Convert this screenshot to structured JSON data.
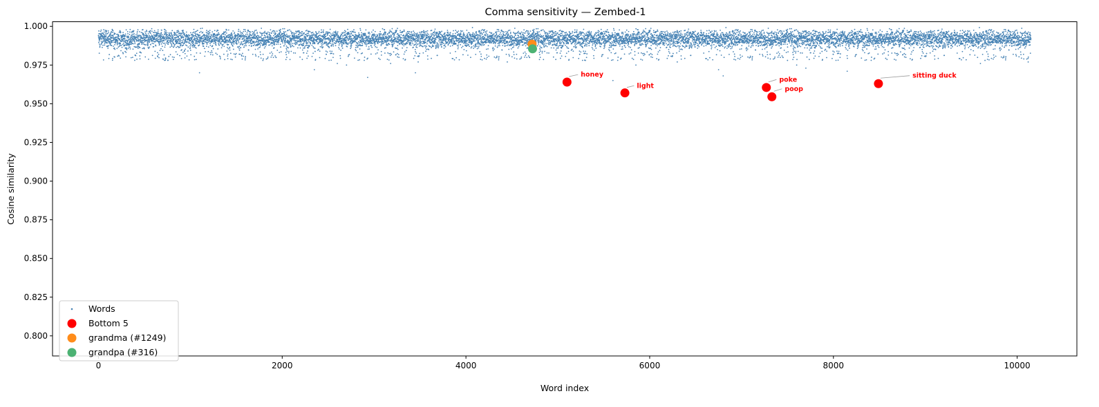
{
  "chart_data": {
    "type": "scatter",
    "title": "Comma sensitivity — Zembed-1",
    "xlabel": "Word index",
    "ylabel": "Cosine similarity",
    "xlim": [
      -500,
      10650
    ],
    "ylim": [
      0.787,
      1.003
    ],
    "xticks": [
      0,
      2000,
      4000,
      6000,
      8000,
      10000
    ],
    "yticks": [
      0.8,
      0.825,
      0.85,
      0.875,
      0.9,
      0.925,
      0.95,
      0.975,
      1.0
    ],
    "xtick_labels": [
      "0",
      "2000",
      "4000",
      "6000",
      "8000",
      "10000"
    ],
    "ytick_labels": [
      "0.800",
      "0.825",
      "0.850",
      "0.875",
      "0.900",
      "0.925",
      "0.950",
      "0.975",
      "1.000"
    ],
    "legend_position": "lower-left",
    "series": [
      {
        "name": "Words",
        "color": "#4682b4",
        "marker": "small-dot",
        "n_points": 10150,
        "median": 0.9925,
        "band": [
          0.988,
          0.996
        ],
        "outliers": [
          {
            "x": 1100,
            "y": 0.97
          },
          {
            "x": 1790,
            "y": 0.978
          },
          {
            "x": 2350,
            "y": 0.972
          },
          {
            "x": 2600,
            "y": 0.976
          },
          {
            "x": 2700,
            "y": 0.975
          },
          {
            "x": 2930,
            "y": 0.967
          },
          {
            "x": 3180,
            "y": 0.976
          },
          {
            "x": 3450,
            "y": 0.97
          },
          {
            "x": 3480,
            "y": 0.977
          },
          {
            "x": 4450,
            "y": 0.977
          },
          {
            "x": 5300,
            "y": 0.978
          },
          {
            "x": 5600,
            "y": 0.965
          },
          {
            "x": 5850,
            "y": 0.975
          },
          {
            "x": 6300,
            "y": 0.977
          },
          {
            "x": 6750,
            "y": 0.972
          },
          {
            "x": 6800,
            "y": 0.968
          },
          {
            "x": 7500,
            "y": 0.978
          },
          {
            "x": 7600,
            "y": 0.975
          },
          {
            "x": 7700,
            "y": 0.973
          },
          {
            "x": 8150,
            "y": 0.971
          },
          {
            "x": 9600,
            "y": 0.976
          },
          {
            "x": 9650,
            "y": 0.978
          },
          {
            "x": 10120,
            "y": 0.977
          }
        ]
      },
      {
        "name": "Bottom 5",
        "color": "#ff0000",
        "points": [
          {
            "x": 5100,
            "y": 0.964,
            "label": "honey",
            "tx": 5250,
            "ty": 0.9675
          },
          {
            "x": 5730,
            "y": 0.957,
            "label": "light",
            "tx": 5860,
            "ty": 0.9603
          },
          {
            "x": 7270,
            "y": 0.9605,
            "label": "poke",
            "tx": 7410,
            "ty": 0.9643
          },
          {
            "x": 7330,
            "y": 0.9545,
            "label": "poop",
            "tx": 7470,
            "ty": 0.9583
          },
          {
            "x": 8490,
            "y": 0.963,
            "label": "sitting duck",
            "tx": 8860,
            "ty": 0.9668
          }
        ]
      },
      {
        "name": "grandma (#1249)",
        "color": "#ff8c1a",
        "points": [
          {
            "x": 4720,
            "y": 0.9885
          }
        ]
      },
      {
        "name": "grandpa (#316)",
        "color": "#4cb273",
        "points": [
          {
            "x": 4725,
            "y": 0.9855
          }
        ]
      }
    ]
  }
}
